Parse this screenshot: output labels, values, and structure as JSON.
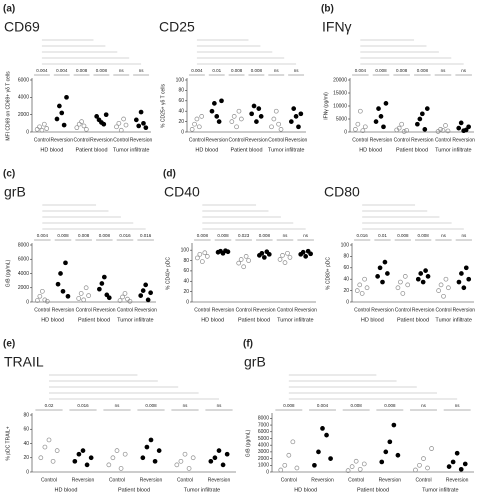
{
  "chart_data": [
    {
      "type": "strip",
      "panel": "(a)",
      "title": "CD69",
      "ylabel": "MFI CD69 on CD69+ γδ T cells",
      "categories": [
        "Control",
        "Reversion",
        "Control",
        "Reversion",
        "Control",
        "Reversion"
      ],
      "groups": [
        "HD blood",
        "Patient blood",
        "Tumor infiltrate"
      ],
      "colors": [
        "#8c8c8c",
        "#000000"
      ],
      "ylim": [
        0,
        6000
      ],
      "yticks": [
        0,
        2000,
        4000,
        6000
      ],
      "pvalues": [
        "0.004",
        "0.004",
        "0.008",
        "0.008",
        "ns",
        "ns"
      ],
      "values": [
        [
          300,
          600,
          200,
          900,
          400
        ],
        [
          1500,
          3000,
          2200,
          800,
          4000
        ],
        [
          500,
          900,
          1200,
          700,
          300
        ],
        [
          1800,
          1400,
          1100,
          900,
          2000
        ],
        [
          600,
          1000,
          200,
          1500,
          800
        ],
        [
          1400,
          700,
          2300,
          1000,
          500
        ]
      ]
    },
    {
      "type": "strip",
      "title": "CD25",
      "ylabel": "% CD25+ γδ T cells",
      "categories": [
        "Control",
        "Reversion",
        "Control",
        "Reversion",
        "Control",
        "Reversion"
      ],
      "groups": [
        "HD blood",
        "Patient blood",
        "Tumor infiltrate"
      ],
      "colors": [
        "#8c8c8c",
        "#000000"
      ],
      "ylim": [
        0,
        100
      ],
      "yticks": [
        0,
        20,
        40,
        60,
        80,
        100
      ],
      "pvalues": [
        "0.004",
        "0.01",
        "0.008",
        "0.008",
        "ns",
        "ns"
      ],
      "values": [
        [
          5,
          15,
          25,
          10,
          30
        ],
        [
          40,
          55,
          30,
          20,
          60
        ],
        [
          20,
          30,
          10,
          40,
          25
        ],
        [
          35,
          50,
          20,
          45,
          30
        ],
        [
          10,
          25,
          40,
          15,
          5
        ],
        [
          20,
          45,
          30,
          10,
          35
        ]
      ]
    },
    {
      "type": "strip",
      "panel": "(b)",
      "title": "IFNγ",
      "ylabel": "IFNγ (pg/ml)",
      "categories": [
        "Control",
        "Reversion",
        "Control",
        "Reversion",
        "Control",
        "Reversion"
      ],
      "groups": [
        "HD blood",
        "Patient blood",
        "Tumor infiltrate"
      ],
      "colors": [
        "#8c8c8c",
        "#000000"
      ],
      "ylim": [
        0,
        20000
      ],
      "yticks": [
        0,
        5000,
        10000,
        15000,
        20000
      ],
      "pvalues": [
        "0.004",
        "0.008",
        "0.008",
        "0.008",
        "ns",
        "ns"
      ],
      "values": [
        [
          1000,
          3000,
          8000,
          500,
          2000
        ],
        [
          4000,
          9000,
          6000,
          2000,
          11000
        ],
        [
          800,
          1500,
          3000,
          200,
          600
        ],
        [
          3000,
          5000,
          7000,
          1000,
          9000
        ],
        [
          200,
          1000,
          600,
          2500,
          400
        ],
        [
          1500,
          3500,
          500,
          800,
          2000
        ]
      ]
    },
    {
      "type": "strip",
      "panel": "(c)",
      "title": "grB",
      "ylabel": "GrB (pg/mL)",
      "categories": [
        "Control",
        "Reversion",
        "Control",
        "Reversion",
        "Control",
        "Reversion"
      ],
      "groups": [
        "HD blood",
        "Patient blood",
        "Tumor infiltrate"
      ],
      "colors": [
        "#8c8c8c",
        "#000000"
      ],
      "ylim": [
        0,
        8000
      ],
      "yticks": [
        0,
        2000,
        4000,
        6000,
        8000
      ],
      "pvalues": [
        "0.004",
        "0.008",
        "0.008",
        "0.008",
        "0.016",
        "0.016"
      ],
      "values": [
        [
          200,
          800,
          1500,
          300,
          100
        ],
        [
          2500,
          4000,
          1500,
          5500,
          800
        ],
        [
          500,
          1200,
          300,
          2000,
          900
        ],
        [
          1800,
          2600,
          3500,
          1000,
          600
        ],
        [
          200,
          700,
          1200,
          400,
          100
        ],
        [
          900,
          1600,
          2400,
          300,
          1300
        ]
      ]
    },
    {
      "type": "strip",
      "panel": "(d)",
      "title": "CD40",
      "ylabel": "% CD40+ pDC",
      "categories": [
        "Control",
        "Reversion",
        "Control",
        "Reversion",
        "Control",
        "Reversion"
      ],
      "groups": [
        "HD blood",
        "Patient blood",
        "Tumor infiltrate"
      ],
      "colors": [
        "#8c8c8c",
        "#000000"
      ],
      "ylim": [
        0,
        110
      ],
      "yticks": [
        0,
        20,
        40,
        60,
        80,
        100
      ],
      "pvalues": [
        "0.008",
        "0.008",
        "0.023",
        "0.008",
        "ns",
        "ns"
      ],
      "values": [
        [
          85,
          92,
          78,
          95,
          88
        ],
        [
          96,
          98,
          94,
          99,
          97
        ],
        [
          75,
          82,
          68,
          88,
          80
        ],
        [
          90,
          94,
          86,
          97,
          92
        ],
        [
          82,
          90,
          76,
          94,
          86
        ],
        [
          92,
          96,
          88,
          98,
          93
        ]
      ]
    },
    {
      "type": "strip",
      "title": "CD80",
      "ylabel": "% CD80+ pDC",
      "categories": [
        "Control",
        "Reversion",
        "Control",
        "Reversion",
        "Control",
        "Reversion"
      ],
      "groups": [
        "HD blood",
        "Patient blood",
        "Tumor infiltrate"
      ],
      "colors": [
        "#8c8c8c",
        "#000000"
      ],
      "ylim": [
        0,
        100
      ],
      "yticks": [
        0,
        20,
        40,
        60,
        80,
        100
      ],
      "pvalues": [
        "0.016",
        "0.01",
        "0.008",
        "0.008",
        "ns",
        "ns"
      ],
      "values": [
        [
          20,
          30,
          15,
          40,
          25
        ],
        [
          45,
          60,
          35,
          70,
          50
        ],
        [
          25,
          35,
          15,
          45,
          30
        ],
        [
          40,
          50,
          35,
          55,
          45
        ],
        [
          20,
          30,
          10,
          40,
          25
        ],
        [
          35,
          50,
          25,
          60,
          40
        ]
      ]
    },
    {
      "type": "strip",
      "panel": "(e)",
      "title": "TRAIL",
      "ylabel": "% pDC TRAIL+",
      "categories": [
        "Control",
        "Reversion",
        "Control",
        "Reversion",
        "Control",
        "Reversion"
      ],
      "groups": [
        "HD blood",
        "Patient blood",
        "Tumor infiltrate"
      ],
      "colors": [
        "#8c8c8c",
        "#000000"
      ],
      "ylim": [
        0,
        80
      ],
      "yticks": [
        0,
        20,
        40,
        60,
        80
      ],
      "pvalues": [
        "0.02",
        "0.016",
        "ns",
        "0.008",
        "ns",
        "ns"
      ],
      "values": [
        [
          20,
          35,
          45,
          15,
          30
        ],
        [
          15,
          25,
          30,
          10,
          20
        ],
        [
          10,
          20,
          30,
          5,
          25
        ],
        [
          20,
          35,
          45,
          15,
          30
        ],
        [
          10,
          15,
          25,
          5,
          20
        ],
        [
          15,
          20,
          30,
          10,
          25
        ]
      ]
    },
    {
      "type": "strip",
      "panel": "(f)",
      "title": "grB",
      "ylabel": "GrB (pg/mL)",
      "categories": [
        "Control",
        "Reversion",
        "Control",
        "Reversion",
        "Control",
        "Reversion"
      ],
      "groups": [
        "HD blood",
        "Patient blood",
        "Tumor infiltrate"
      ],
      "colors": [
        "#8c8c8c",
        "#000000"
      ],
      "ylim": [
        0,
        8500
      ],
      "yticks": [
        0,
        1000,
        2000,
        3000,
        4000,
        5000,
        6000,
        7000,
        8000
      ],
      "pvalues": [
        "0.008",
        "0.004",
        "0.008",
        "0.008",
        "ns",
        "ns"
      ],
      "values": [
        [
          300,
          1000,
          2500,
          4500,
          600
        ],
        [
          1000,
          3000,
          6500,
          5500,
          2000
        ],
        [
          200,
          800,
          1600,
          400,
          1200
        ],
        [
          1500,
          3000,
          4500,
          7000,
          2500
        ],
        [
          300,
          1000,
          2000,
          600,
          3500
        ],
        [
          800,
          1500,
          2800,
          400,
          1200
        ]
      ]
    }
  ]
}
